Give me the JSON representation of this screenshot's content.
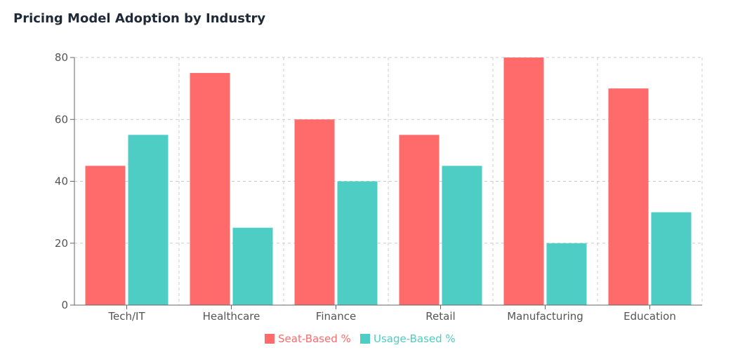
{
  "chart_data": {
    "type": "bar",
    "title": "Pricing Model Adoption by Industry",
    "xlabel": "",
    "ylabel": "",
    "categories": [
      "Tech/IT",
      "Healthcare",
      "Finance",
      "Retail",
      "Manufacturing",
      "Education"
    ],
    "series": [
      {
        "name": "Seat-Based %",
        "color": "#ff6b6b",
        "values": [
          45,
          75,
          60,
          55,
          80,
          70
        ]
      },
      {
        "name": "Usage-Based %",
        "color": "#4ecdc4",
        "values": [
          55,
          25,
          40,
          45,
          20,
          30
        ]
      }
    ],
    "ylim": [
      0,
      80
    ],
    "yticks": [
      0,
      20,
      40,
      60,
      80
    ],
    "grid": true,
    "legend": "bottom-center"
  }
}
